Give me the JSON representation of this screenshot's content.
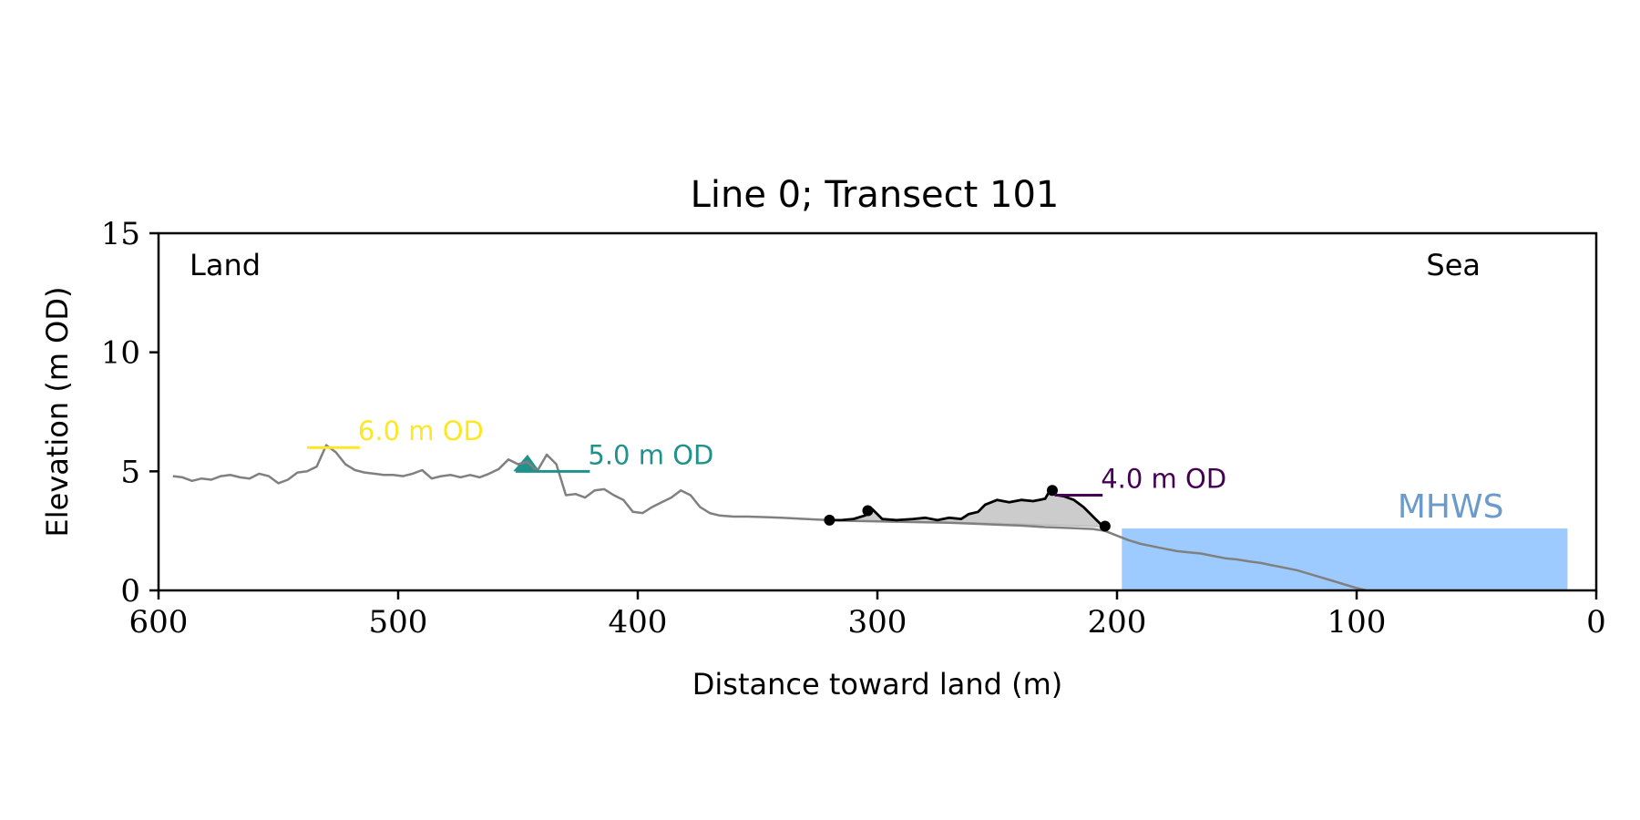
{
  "chart_data": {
    "type": "line",
    "title": "Line 0; Transect 101",
    "xlabel": "Distance toward land (m)",
    "ylabel": "Elevation (m OD)",
    "xlim": [
      600,
      0
    ],
    "ylim": [
      0,
      15
    ],
    "x_ticks": [
      600,
      500,
      400,
      300,
      200,
      100,
      0
    ],
    "x_tick_labels": [
      "600",
      "500",
      "400",
      "300",
      "200",
      "100",
      "0"
    ],
    "y_ticks": [
      0,
      5,
      10,
      15
    ],
    "y_tick_labels": [
      "0",
      "5",
      "10",
      "15"
    ],
    "grid": false,
    "corner_labels": {
      "left": "Land",
      "right": "Sea"
    },
    "colors": {
      "profile": "#808080",
      "dune": "#000000",
      "dune_fill": "#cccccc",
      "sea": "#9ecbff",
      "mhws_text": "#6c9acb"
    },
    "profile": {
      "name": "",
      "x": [
        594,
        590,
        586,
        582,
        578,
        574,
        570,
        566,
        562,
        558,
        554,
        550,
        546,
        542,
        538,
        534,
        530,
        526,
        522,
        518,
        514,
        510,
        506,
        502,
        498,
        494,
        490,
        486,
        482,
        478,
        474,
        470,
        466,
        462,
        458,
        454,
        450,
        446,
        442,
        438,
        434,
        430,
        426,
        422,
        418,
        414,
        410,
        406,
        402,
        398,
        394,
        390,
        386,
        382,
        378,
        374,
        370,
        366,
        360,
        354,
        348,
        340,
        330,
        320,
        310,
        300,
        290,
        280,
        270,
        260,
        250,
        240,
        230,
        220,
        210,
        205,
        200,
        195,
        190,
        185,
        180,
        175,
        170,
        165,
        160,
        155,
        150,
        145,
        140,
        135,
        130,
        125,
        120,
        115,
        110,
        105,
        100,
        96
      ],
      "y": [
        4.8,
        4.75,
        4.6,
        4.7,
        4.65,
        4.8,
        4.85,
        4.75,
        4.7,
        4.9,
        4.8,
        4.5,
        4.65,
        4.95,
        5.0,
        5.2,
        6.1,
        5.8,
        5.3,
        5.05,
        4.95,
        4.9,
        4.85,
        4.85,
        4.8,
        4.9,
        5.05,
        4.7,
        4.8,
        4.85,
        4.75,
        4.85,
        4.75,
        4.9,
        5.1,
        5.5,
        5.3,
        5.4,
        5.0,
        5.7,
        5.3,
        4.0,
        4.05,
        3.9,
        4.2,
        4.25,
        4.0,
        3.8,
        3.3,
        3.25,
        3.5,
        3.7,
        3.9,
        4.2,
        4.0,
        3.5,
        3.25,
        3.15,
        3.1,
        3.1,
        3.08,
        3.05,
        3.0,
        2.95,
        2.92,
        2.9,
        2.88,
        2.86,
        2.84,
        2.8,
        2.76,
        2.72,
        2.66,
        2.62,
        2.58,
        2.5,
        2.3,
        2.1,
        1.95,
        1.85,
        1.75,
        1.65,
        1.6,
        1.55,
        1.45,
        1.35,
        1.3,
        1.22,
        1.15,
        1.05,
        0.95,
        0.85,
        0.7,
        0.55,
        0.4,
        0.25,
        0.1,
        0.0
      ]
    },
    "dune_profile": {
      "name": "",
      "x": [
        320,
        315,
        310,
        305,
        302,
        298,
        292,
        285,
        280,
        275,
        270,
        265,
        262,
        258,
        255,
        250,
        245,
        240,
        235,
        230,
        228,
        225,
        222,
        218,
        214,
        210,
        206
      ],
      "y": [
        2.95,
        2.95,
        3.0,
        3.15,
        3.4,
        3.0,
        2.95,
        3.0,
        3.05,
        2.95,
        3.05,
        3.0,
        3.2,
        3.3,
        3.6,
        3.8,
        3.7,
        3.8,
        3.75,
        3.85,
        4.2,
        4.0,
        3.95,
        3.8,
        3.5,
        3.1,
        2.7
      ]
    },
    "dune_points": {
      "x": [
        320,
        304,
        227,
        205
      ],
      "y": [
        2.95,
        3.35,
        4.2,
        2.7
      ]
    },
    "dune_fill_base": {
      "x": [
        320,
        300,
        280,
        260,
        240,
        220,
        206
      ],
      "y": [
        2.95,
        2.92,
        2.88,
        2.84,
        2.78,
        2.72,
        2.68
      ]
    },
    "mhws": {
      "label": "MHWS",
      "level": 2.6,
      "x_start": 198,
      "x_end": 12
    },
    "contour_levels": [
      {
        "label": "6.0 m OD",
        "level": 6.0,
        "x_start": 538,
        "x_end": 516,
        "color": "#fde725"
      },
      {
        "label": "5.0 m OD",
        "level": 5.0,
        "x_start": 451,
        "x_end": 420,
        "color": "#21918c",
        "fill_x": [
          452,
          446,
          441
        ],
        "fill_y": [
          5.0,
          5.7,
          5.0
        ]
      },
      {
        "label": "4.0 m OD",
        "level": 4.0,
        "x_start": 226,
        "x_end": 206,
        "color": "#440154"
      }
    ]
  }
}
